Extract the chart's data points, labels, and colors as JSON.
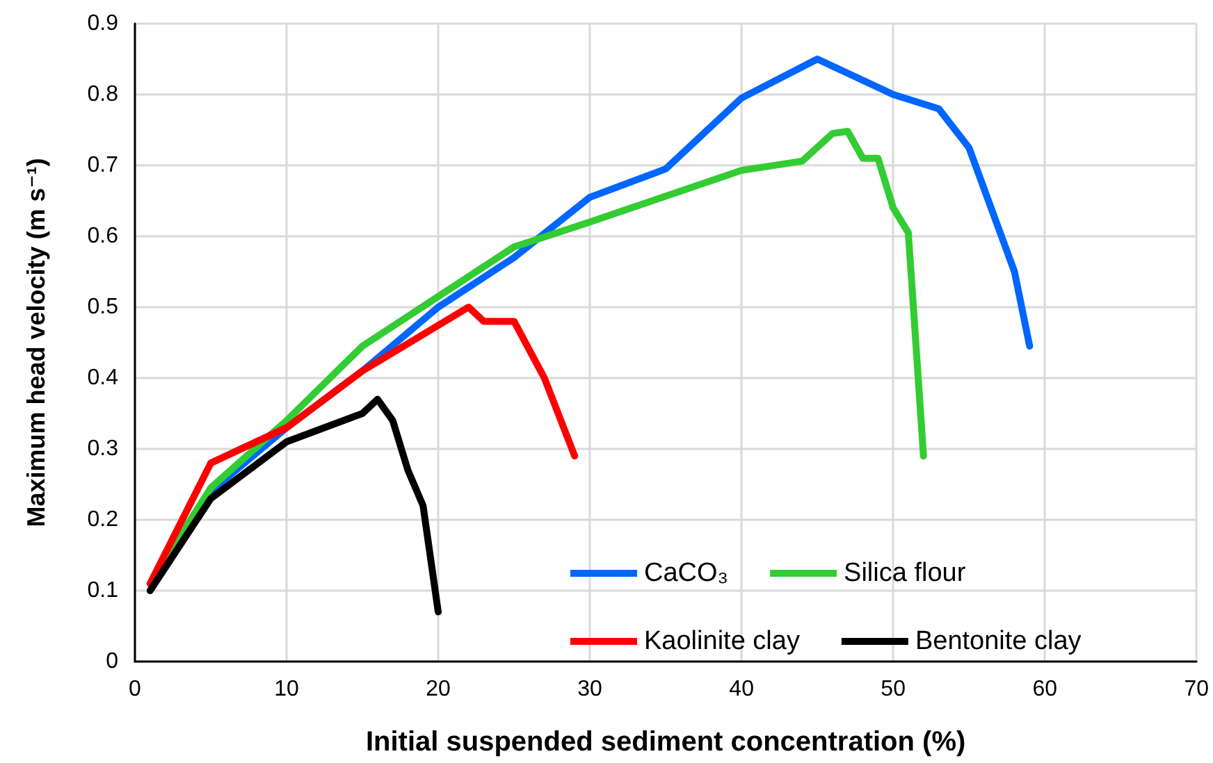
{
  "chart_data": {
    "type": "line",
    "xlabel": "Initial suspended sediment concentration (%)",
    "ylabel": "Maximum head velocity (m s⁻¹)",
    "xlim": [
      0,
      70
    ],
    "xticks": [
      0,
      10,
      20,
      30,
      40,
      50,
      60,
      70
    ],
    "ylim": [
      0,
      0.9
    ],
    "yticks": [
      0,
      0.1,
      0.2,
      0.3,
      0.4,
      0.5,
      0.6,
      0.7,
      0.8,
      0.9
    ],
    "grid": true,
    "legend": "bottom right",
    "marker": "none",
    "line_style": "solid",
    "series": [
      {
        "name": "CaCO₃",
        "color": "#0066ff",
        "x": [
          5,
          10,
          15,
          20,
          25,
          30,
          35,
          40,
          45,
          50,
          53,
          55,
          58,
          59
        ],
        "values": [
          0.24,
          0.33,
          0.41,
          0.5,
          0.57,
          0.655,
          0.695,
          0.795,
          0.85,
          0.8,
          0.78,
          0.725,
          0.55,
          0.445
        ]
      },
      {
        "name": "Silica flour",
        "color": "#33cc33",
        "x": [
          1,
          5,
          10,
          15,
          20,
          25,
          30,
          40,
          44,
          46,
          47,
          48,
          49,
          50,
          51,
          52
        ],
        "values": [
          0.11,
          0.245,
          0.34,
          0.445,
          0.515,
          0.585,
          0.62,
          0.693,
          0.706,
          0.745,
          0.748,
          0.71,
          0.71,
          0.64,
          0.605,
          0.29
        ]
      },
      {
        "name": "Kaolinite clay",
        "color": "#ff0000",
        "x": [
          1,
          5,
          10,
          15,
          22,
          23,
          25,
          27,
          29
        ],
        "values": [
          0.11,
          0.28,
          0.33,
          0.41,
          0.5,
          0.48,
          0.48,
          0.4,
          0.29
        ]
      },
      {
        "name": "Bentonite clay",
        "color": "#000000",
        "x": [
          1,
          5,
          10,
          15,
          16,
          17,
          18,
          19,
          20
        ],
        "values": [
          0.1,
          0.23,
          0.31,
          0.35,
          0.37,
          0.34,
          0.27,
          0.22,
          0.07
        ]
      }
    ]
  }
}
